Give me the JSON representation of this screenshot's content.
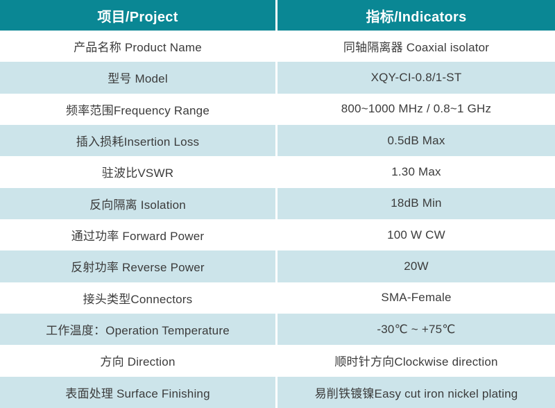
{
  "table": {
    "header": {
      "project_col": "项目/Project",
      "indicator_col": "指标/Indicators"
    },
    "rows": [
      {
        "project": "产品名称 Product Name",
        "indicator": "同轴隔离器 Coaxial isolator"
      },
      {
        "project": "型号 Model",
        "indicator": "XQY-CI-0.8/1-ST"
      },
      {
        "project": "频率范围Frequency Range",
        "indicator": "800~1000 MHz / 0.8~1 GHz"
      },
      {
        "project": "插入损耗Insertion Loss",
        "indicator": "0.5dB Max"
      },
      {
        "project": "驻波比VSWR",
        "indicator": "1.30 Max"
      },
      {
        "project": "反向隔离 Isolation",
        "indicator": "18dB Min"
      },
      {
        "project": "通过功率 Forward Power",
        "indicator": "100 W CW"
      },
      {
        "project": "反射功率 Reverse Power",
        "indicator": "20W"
      },
      {
        "project": "接头类型Connectors",
        "indicator": "SMA-Female"
      },
      {
        "project": "工作温度：Operation Temperature",
        "indicator": "-30℃ ~ +75℃"
      },
      {
        "project": "方向 Direction",
        "indicator": "顺时针方向Clockwise direction"
      },
      {
        "project": "表面处理 Surface Finishing",
        "indicator": "易削铁镀镍Easy cut iron nickel plating"
      }
    ],
    "colors": {
      "header_bg": "#0a8794",
      "header_text": "#ffffff",
      "row_bg": "#ffffff",
      "row_alt_bg": "#cce4ea",
      "body_text": "#3b3b3b",
      "column_divider": "#ffffff"
    }
  }
}
